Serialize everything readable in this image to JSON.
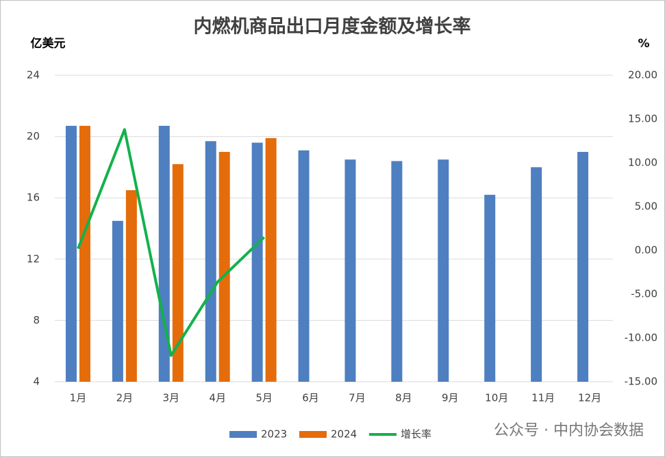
{
  "chart_data": {
    "type": "bar",
    "title": "内燃机商品出口月度金额及增长率",
    "y_label": "亿美元",
    "y2_label": "%",
    "watermark": "公众号 · 中内协会数据",
    "categories": [
      "1月",
      "2月",
      "3月",
      "4月",
      "5月",
      "6月",
      "7月",
      "8月",
      "9月",
      "10月",
      "11月",
      "12月"
    ],
    "series": [
      {
        "name": "2023",
        "color": "#4e7fc0",
        "values": [
          20.7,
          14.5,
          20.7,
          19.7,
          19.6,
          19.1,
          18.5,
          18.4,
          18.5,
          16.2,
          18.0,
          19.0
        ]
      },
      {
        "name": "2024",
        "color": "#e46c0a",
        "values": [
          20.7,
          16.5,
          18.2,
          19.0,
          19.9,
          null,
          null,
          null,
          null,
          null,
          null,
          null
        ]
      },
      {
        "name": "增长率",
        "color": "#13b14b",
        "type": "line",
        "axis": "y2",
        "values": [
          0.2,
          13.8,
          -12.0,
          -3.6,
          1.5,
          null,
          null,
          null,
          null,
          null,
          null,
          null
        ]
      }
    ],
    "ylim": [
      4,
      24
    ],
    "yticks": [
      4,
      8,
      12,
      16,
      20,
      24
    ],
    "y2lim": [
      -15,
      20
    ],
    "y2ticks": [
      {
        "value": -15,
        "label": "-15.00"
      },
      {
        "value": -10,
        "label": "-10.00"
      },
      {
        "value": -5,
        "label": "-5.00"
      },
      {
        "value": 0,
        "label": "0.00"
      },
      {
        "value": 5,
        "label": "5.00"
      },
      {
        "value": 10,
        "label": "10.00"
      },
      {
        "value": 15,
        "label": "15.00"
      },
      {
        "value": 20,
        "label": "20.00"
      }
    ],
    "grid": true,
    "legend": "bottom"
  }
}
